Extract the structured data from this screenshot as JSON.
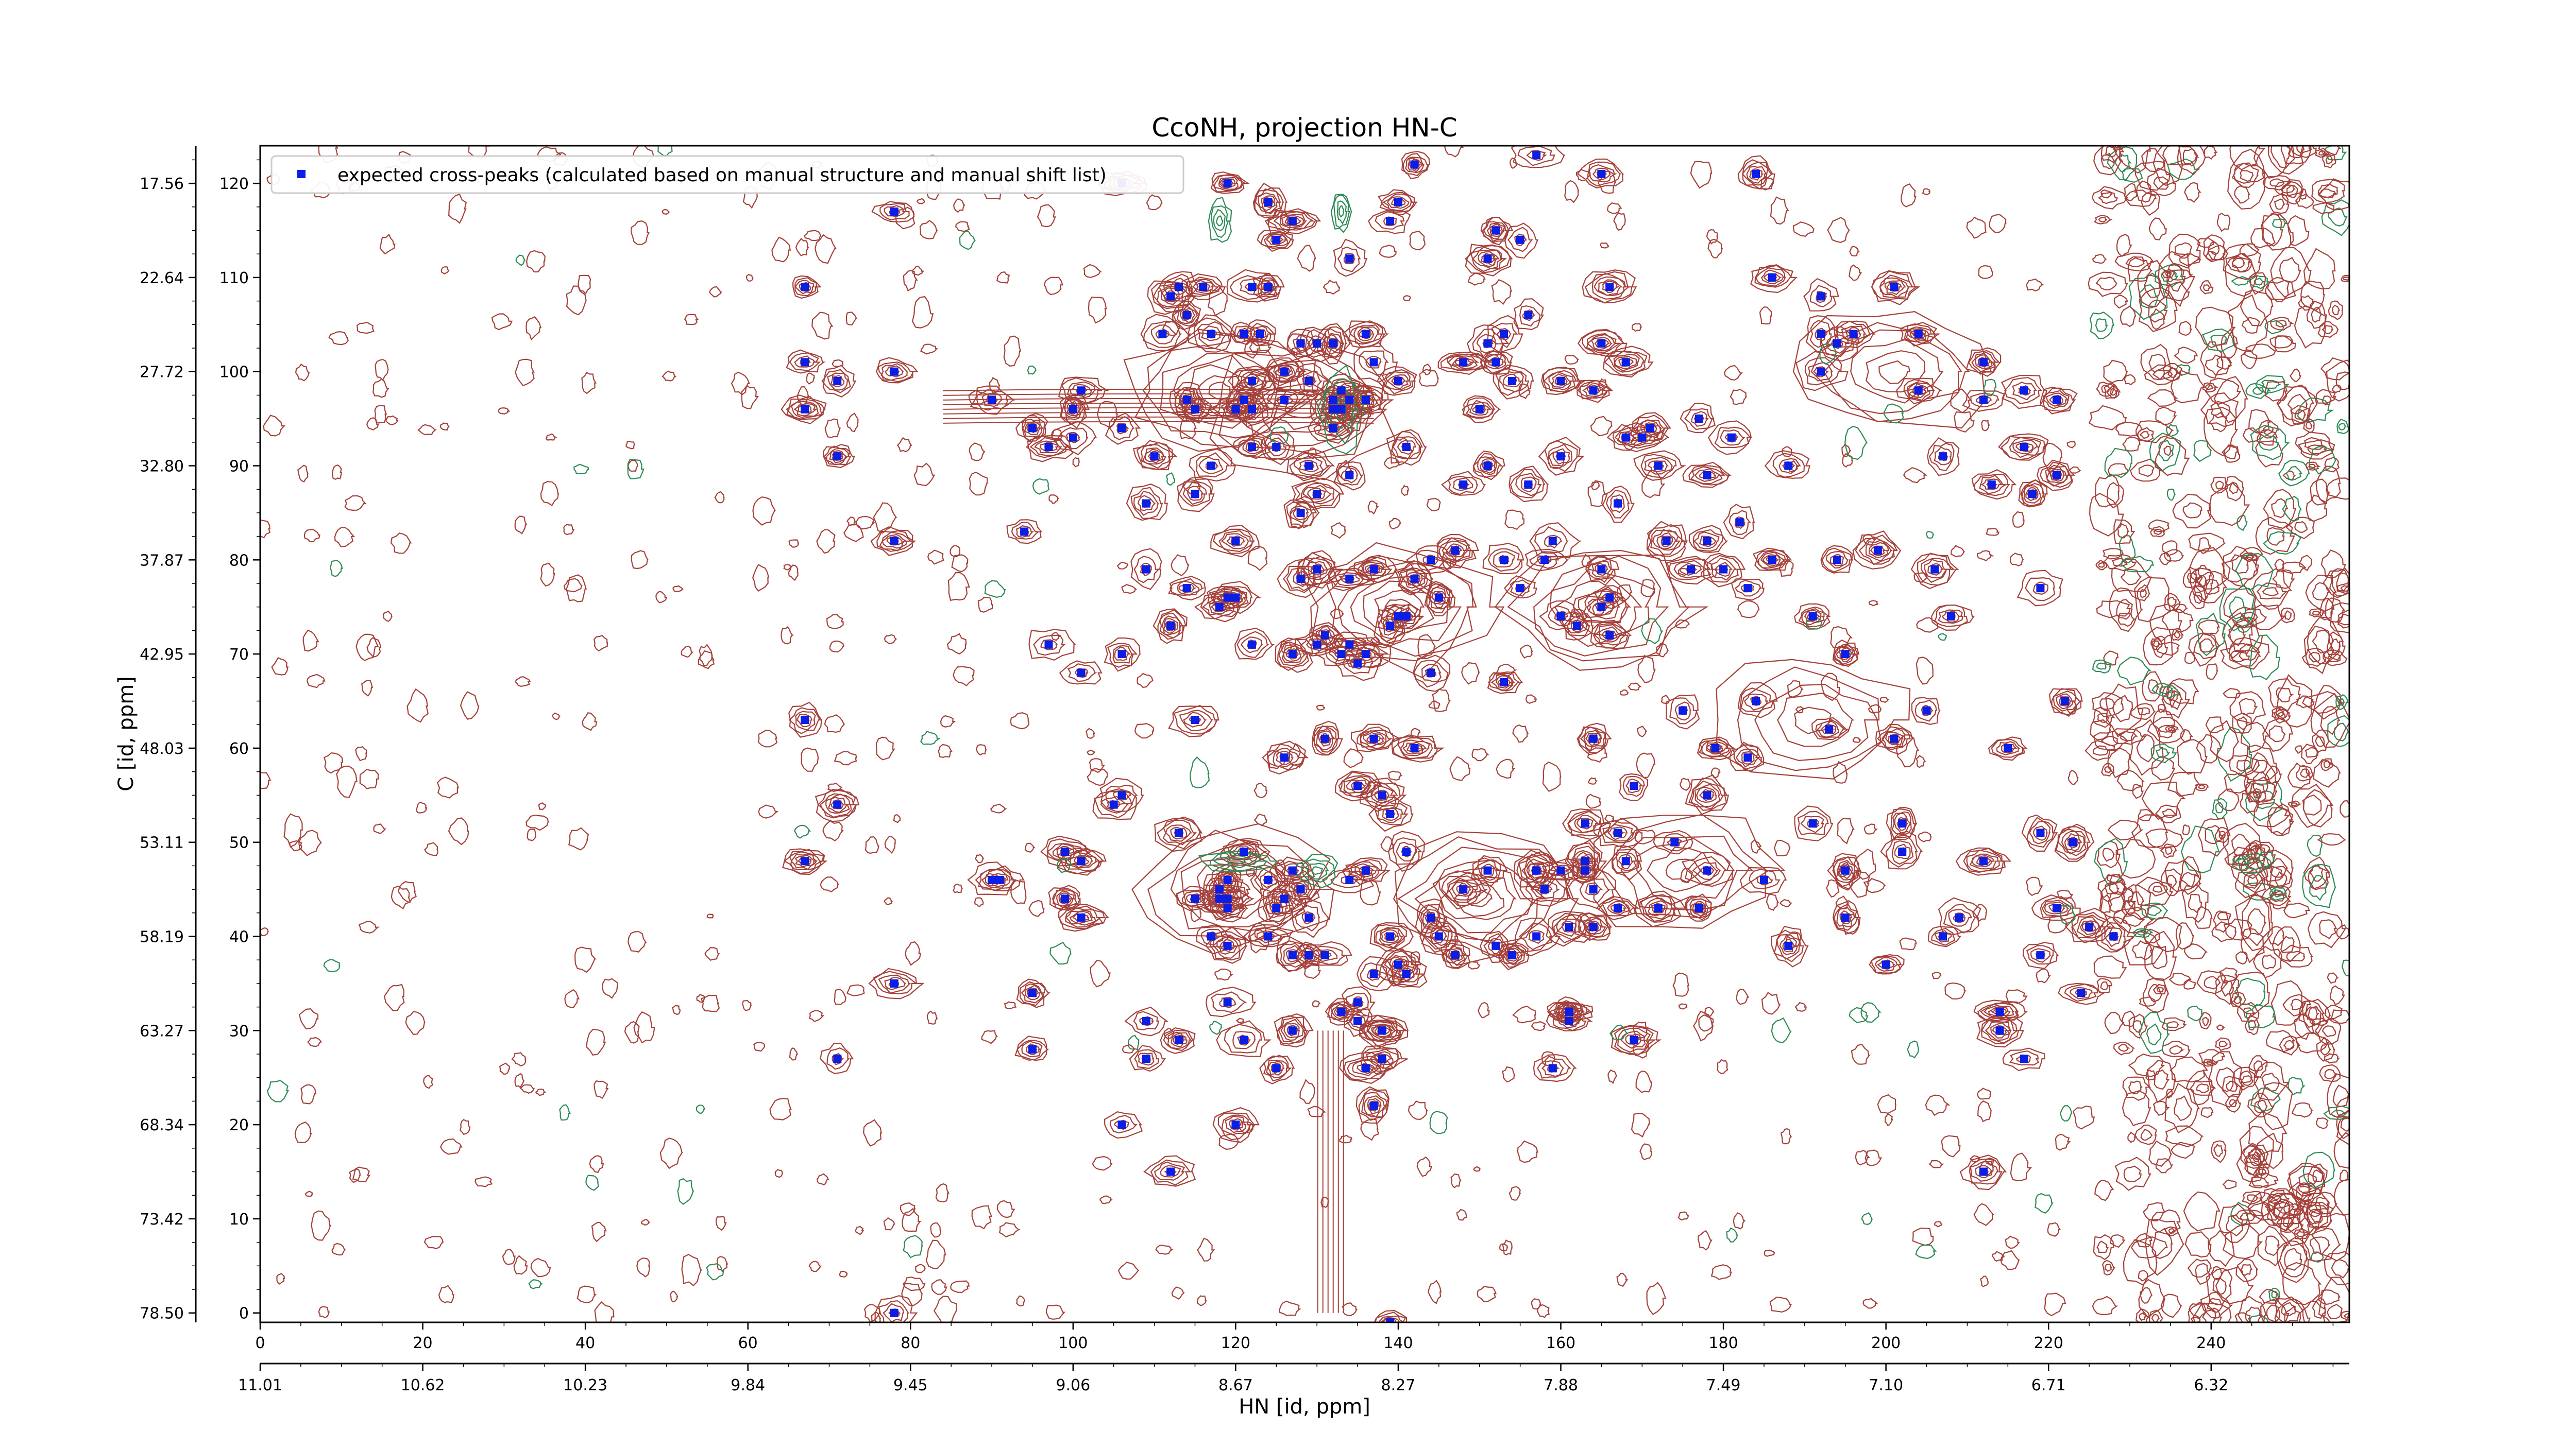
{
  "chart_data": {
    "type": "scatter",
    "title": "CcoNH, projection HN-C",
    "xlabel": "HN [id, ppm]",
    "ylabel": "C [id, ppm]",
    "x_index_range": [
      0,
      257
    ],
    "y_index_range": [
      -1,
      124
    ],
    "x_index_ticks": [
      "0",
      "20",
      "40",
      "60",
      "80",
      "100",
      "120",
      "140",
      "160",
      "180",
      "200",
      "220",
      "240"
    ],
    "x_ppm_ticks": [
      "11.01",
      "10.62",
      "10.23",
      "9.84",
      "9.45",
      "9.06",
      "8.67",
      "8.27",
      "7.88",
      "7.49",
      "7.10",
      "6.71",
      "6.32"
    ],
    "y_index_ticks": [
      "0",
      "10",
      "20",
      "30",
      "40",
      "50",
      "60",
      "70",
      "80",
      "90",
      "100",
      "110",
      "120"
    ],
    "y_ppm_ticks": [
      "78.50",
      "73.42",
      "68.34",
      "63.27",
      "58.19",
      "53.11",
      "48.03",
      "42.95",
      "37.87",
      "32.80",
      "27.72",
      "22.64",
      "17.56"
    ],
    "legend": {
      "position": "top-left",
      "label": "expected cross-peaks (calculated based on manual structure and manual shift list)"
    },
    "colors": {
      "marker": "#0a1ee6",
      "positive_contour": "#a5413a",
      "negative_contour": "#2e8b57",
      "axis": "#000000"
    },
    "series": [
      {
        "name": "expected cross-peaks (calculated based on manual structure and manual shift list)",
        "points": [
          [
            67,
            109
          ],
          [
            67,
            96
          ],
          [
            67,
            101
          ],
          [
            67,
            63
          ],
          [
            67,
            48
          ],
          [
            71,
            99
          ],
          [
            71,
            91
          ],
          [
            71,
            54
          ],
          [
            71,
            27
          ],
          [
            78,
            100
          ],
          [
            78,
            117
          ],
          [
            78,
            82
          ],
          [
            78,
            35
          ],
          [
            78,
            0
          ],
          [
            90,
            97
          ],
          [
            90,
            46
          ],
          [
            91,
            46
          ],
          [
            94,
            83
          ],
          [
            95,
            94
          ],
          [
            95,
            34
          ],
          [
            95,
            28
          ],
          [
            97,
            92
          ],
          [
            97,
            71
          ],
          [
            99,
            44
          ],
          [
            99,
            49
          ],
          [
            100,
            93
          ],
          [
            100,
            96
          ],
          [
            101,
            48
          ],
          [
            101,
            42
          ],
          [
            101,
            68
          ],
          [
            101,
            98
          ],
          [
            105,
            54
          ],
          [
            106,
            55
          ],
          [
            106,
            20
          ],
          [
            106,
            70
          ],
          [
            106,
            94
          ],
          [
            106,
            120
          ],
          [
            109,
            86
          ],
          [
            109,
            79
          ],
          [
            109,
            31
          ],
          [
            109,
            27
          ],
          [
            110,
            91
          ],
          [
            111,
            104
          ],
          [
            112,
            15
          ],
          [
            112,
            73
          ],
          [
            112,
            108
          ],
          [
            113,
            109
          ],
          [
            113,
            51
          ],
          [
            113,
            29
          ],
          [
            114,
            97
          ],
          [
            114,
            77
          ],
          [
            114,
            106
          ],
          [
            115,
            96
          ],
          [
            115,
            87
          ],
          [
            115,
            63
          ],
          [
            115,
            44
          ],
          [
            116,
            109
          ],
          [
            117,
            40
          ],
          [
            117,
            104
          ],
          [
            117,
            90
          ],
          [
            118,
            44
          ],
          [
            118,
            75
          ],
          [
            118,
            45
          ],
          [
            119,
            43
          ],
          [
            119,
            44
          ],
          [
            119,
            46
          ],
          [
            119,
            39
          ],
          [
            119,
            33
          ],
          [
            119,
            76
          ],
          [
            119,
            120
          ],
          [
            120,
            20
          ],
          [
            120,
            96
          ],
          [
            120,
            76
          ],
          [
            120,
            82
          ],
          [
            121,
            49
          ],
          [
            121,
            104
          ],
          [
            121,
            97
          ],
          [
            121,
            29
          ],
          [
            122,
            109
          ],
          [
            122,
            99
          ],
          [
            122,
            71
          ],
          [
            122,
            96
          ],
          [
            122,
            92
          ],
          [
            123,
            104
          ],
          [
            124,
            109
          ],
          [
            124,
            40
          ],
          [
            124,
            46
          ],
          [
            124,
            118
          ],
          [
            125,
            92
          ],
          [
            125,
            114
          ],
          [
            125,
            43
          ],
          [
            125,
            26
          ],
          [
            126,
            44
          ],
          [
            126,
            100
          ],
          [
            126,
            97
          ],
          [
            126,
            59
          ],
          [
            127,
            38
          ],
          [
            127,
            47
          ],
          [
            127,
            30
          ],
          [
            127,
            70
          ],
          [
            127,
            116
          ],
          [
            128,
            45
          ],
          [
            128,
            103
          ],
          [
            128,
            85
          ],
          [
            128,
            78
          ],
          [
            129,
            38
          ],
          [
            129,
            90
          ],
          [
            129,
            99
          ],
          [
            129,
            42
          ],
          [
            130,
            103
          ],
          [
            130,
            71
          ],
          [
            130,
            79
          ],
          [
            130,
            87
          ],
          [
            131,
            61
          ],
          [
            131,
            72
          ],
          [
            131,
            38
          ],
          [
            132,
            97
          ],
          [
            132,
            103
          ],
          [
            132,
            94
          ],
          [
            132,
            96
          ],
          [
            133,
            96
          ],
          [
            133,
            32
          ],
          [
            133,
            98
          ],
          [
            133,
            70
          ],
          [
            134,
            78
          ],
          [
            134,
            46
          ],
          [
            134,
            97
          ],
          [
            134,
            71
          ],
          [
            134,
            89
          ],
          [
            134,
            112
          ],
          [
            135,
            69
          ],
          [
            135,
            56
          ],
          [
            135,
            31
          ],
          [
            135,
            33
          ],
          [
            136,
            26
          ],
          [
            136,
            70
          ],
          [
            136,
            47
          ],
          [
            136,
            97
          ],
          [
            136,
            104
          ],
          [
            137,
            22
          ],
          [
            137,
            79
          ],
          [
            137,
            61
          ],
          [
            137,
            101
          ],
          [
            137,
            36
          ],
          [
            138,
            30
          ],
          [
            138,
            27
          ],
          [
            138,
            30
          ],
          [
            138,
            55
          ],
          [
            139,
            53
          ],
          [
            139,
            73
          ],
          [
            139,
            -1
          ],
          [
            139,
            116
          ],
          [
            139,
            40
          ],
          [
            140,
            37
          ],
          [
            140,
            99
          ],
          [
            140,
            74
          ],
          [
            140,
            118
          ],
          [
            141,
            36
          ],
          [
            141,
            74
          ],
          [
            141,
            49
          ],
          [
            141,
            92
          ],
          [
            142,
            122
          ],
          [
            142,
            78
          ],
          [
            142,
            60
          ],
          [
            144,
            68
          ],
          [
            144,
            42
          ],
          [
            144,
            80
          ],
          [
            145,
            40
          ],
          [
            145,
            76
          ],
          [
            147,
            38
          ],
          [
            147,
            81
          ],
          [
            148,
            101
          ],
          [
            148,
            45
          ],
          [
            148,
            88
          ],
          [
            150,
            96
          ],
          [
            151,
            112
          ],
          [
            151,
            47
          ],
          [
            151,
            90
          ],
          [
            151,
            103
          ],
          [
            152,
            115
          ],
          [
            152,
            101
          ],
          [
            152,
            39
          ],
          [
            153,
            104
          ],
          [
            153,
            67
          ],
          [
            153,
            80
          ],
          [
            154,
            99
          ],
          [
            154,
            38
          ],
          [
            155,
            77
          ],
          [
            155,
            114
          ],
          [
            156,
            88
          ],
          [
            156,
            106
          ],
          [
            157,
            47
          ],
          [
            157,
            40
          ],
          [
            157,
            47
          ],
          [
            157,
            123
          ],
          [
            158,
            80
          ],
          [
            158,
            45
          ],
          [
            159,
            26
          ],
          [
            159,
            82
          ],
          [
            160,
            91
          ],
          [
            160,
            99
          ],
          [
            160,
            47
          ],
          [
            160,
            74
          ],
          [
            161,
            31
          ],
          [
            161,
            32
          ],
          [
            161,
            32
          ],
          [
            161,
            41
          ],
          [
            162,
            73
          ],
          [
            163,
            47
          ],
          [
            163,
            48
          ],
          [
            163,
            52
          ],
          [
            164,
            41
          ],
          [
            164,
            61
          ],
          [
            164,
            45
          ],
          [
            164,
            98
          ],
          [
            165,
            121
          ],
          [
            165,
            79
          ],
          [
            165,
            75
          ],
          [
            165,
            103
          ],
          [
            166,
            109
          ],
          [
            166,
            72
          ],
          [
            166,
            76
          ],
          [
            167,
            43
          ],
          [
            167,
            51
          ],
          [
            167,
            86
          ],
          [
            168,
            101
          ],
          [
            168,
            93
          ],
          [
            168,
            48
          ],
          [
            169,
            29
          ],
          [
            169,
            56
          ],
          [
            170,
            93
          ],
          [
            171,
            94
          ],
          [
            172,
            90
          ],
          [
            172,
            43
          ],
          [
            173,
            82
          ],
          [
            174,
            50
          ],
          [
            175,
            64
          ],
          [
            176,
            79
          ],
          [
            177,
            43
          ],
          [
            177,
            95
          ],
          [
            178,
            82
          ],
          [
            178,
            89
          ],
          [
            178,
            55
          ],
          [
            178,
            47
          ],
          [
            179,
            60
          ],
          [
            180,
            79
          ],
          [
            181,
            93
          ],
          [
            182,
            84
          ],
          [
            183,
            59
          ],
          [
            183,
            77
          ],
          [
            184,
            121
          ],
          [
            184,
            65
          ],
          [
            185,
            46
          ],
          [
            186,
            80
          ],
          [
            186,
            110
          ],
          [
            188,
            90
          ],
          [
            188,
            39
          ],
          [
            191,
            52
          ],
          [
            191,
            74
          ],
          [
            192,
            100
          ],
          [
            192,
            104
          ],
          [
            192,
            108
          ],
          [
            193,
            62
          ],
          [
            194,
            103
          ],
          [
            194,
            80
          ],
          [
            195,
            70
          ],
          [
            195,
            47
          ],
          [
            195,
            42
          ],
          [
            196,
            104
          ],
          [
            199,
            81
          ],
          [
            200,
            37
          ],
          [
            201,
            61
          ],
          [
            201,
            109
          ],
          [
            202,
            49
          ],
          [
            202,
            52
          ],
          [
            204,
            104
          ],
          [
            204,
            98
          ],
          [
            205,
            64
          ],
          [
            206,
            79
          ],
          [
            207,
            40
          ],
          [
            207,
            91
          ],
          [
            208,
            74
          ],
          [
            209,
            42
          ],
          [
            212,
            101
          ],
          [
            212,
            97
          ],
          [
            212,
            15
          ],
          [
            212,
            48
          ],
          [
            213,
            88
          ],
          [
            214,
            30
          ],
          [
            214,
            32
          ],
          [
            215,
            60
          ],
          [
            217,
            98
          ],
          [
            217,
            92
          ],
          [
            217,
            27
          ],
          [
            218,
            87
          ],
          [
            219,
            38
          ],
          [
            219,
            51
          ],
          [
            219,
            77
          ],
          [
            221,
            89
          ],
          [
            221,
            43
          ],
          [
            221,
            97
          ],
          [
            222,
            65
          ],
          [
            223,
            50
          ],
          [
            224,
            34
          ],
          [
            225,
            41
          ],
          [
            228,
            40
          ]
        ]
      }
    ]
  }
}
